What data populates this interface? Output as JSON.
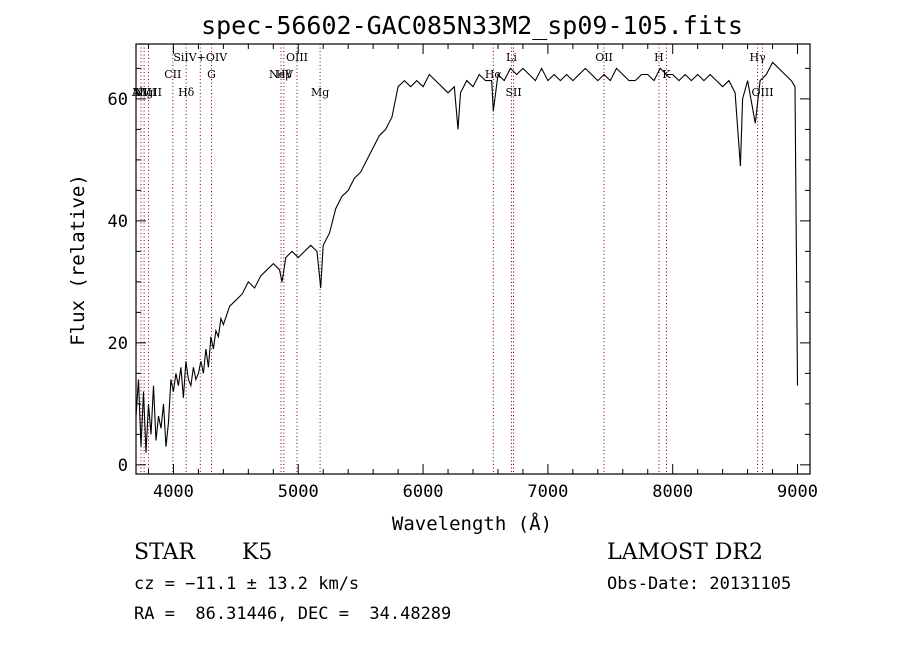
{
  "chart_data": {
    "type": "line",
    "title": "spec-56602-GAC085N33M2_sp09-105.fits",
    "xlabel": "Wavelength (Å)",
    "ylabel": "Flux (relative)",
    "xlim": [
      3700,
      9100
    ],
    "ylim": [
      -1.5,
      69
    ],
    "xticks": [
      4000,
      5000,
      6000,
      7000,
      8000,
      9000
    ],
    "yticks": [
      0,
      20,
      40,
      60
    ],
    "grid": false,
    "line_color": "#000000",
    "marker_color": "#800000",
    "series": [
      {
        "x": [
          3700,
          3720,
          3740,
          3760,
          3780,
          3800,
          3820,
          3840,
          3860,
          3880,
          3900,
          3920,
          3940,
          3960,
          3980,
          4000,
          4020,
          4040,
          4060,
          4080,
          4100,
          4120,
          4140,
          4160,
          4180,
          4200,
          4220,
          4240,
          4260,
          4280,
          4300,
          4320,
          4340,
          4360,
          4380,
          4400,
          4450,
          4500,
          4550,
          4600,
          4650,
          4700,
          4750,
          4800,
          4850,
          4870,
          4900,
          4950,
          5000,
          5050,
          5100,
          5150,
          5180,
          5200,
          5250,
          5300,
          5350,
          5400,
          5450,
          5500,
          5550,
          5600,
          5650,
          5700,
          5750,
          5800,
          5850,
          5900,
          5950,
          6000,
          6050,
          6100,
          6150,
          6200,
          6250,
          6280,
          6300,
          6350,
          6400,
          6450,
          6500,
          6550,
          6563,
          6600,
          6650,
          6700,
          6750,
          6800,
          6850,
          6900,
          6950,
          7000,
          7050,
          7100,
          7150,
          7200,
          7250,
          7300,
          7350,
          7400,
          7450,
          7500,
          7550,
          7600,
          7650,
          7700,
          7750,
          7800,
          7850,
          7900,
          7950,
          8000,
          8050,
          8100,
          8150,
          8200,
          8250,
          8300,
          8350,
          8400,
          8450,
          8500,
          8542,
          8560,
          8600,
          8662,
          8700,
          8750,
          8800,
          8850,
          8900,
          8950,
          8980,
          9000
        ],
        "y": [
          8,
          14,
          3,
          12,
          2,
          10,
          5,
          13,
          4,
          8,
          6,
          10,
          3,
          7,
          14,
          12,
          15,
          13,
          16,
          11,
          17,
          14,
          13,
          16,
          14,
          15,
          17,
          15,
          19,
          16,
          21,
          19,
          22,
          21,
          24,
          23,
          26,
          27,
          28,
          30,
          29,
          31,
          32,
          33,
          32,
          30,
          34,
          35,
          34,
          35,
          36,
          35,
          29,
          36,
          38,
          42,
          44,
          45,
          47,
          48,
          50,
          52,
          54,
          55,
          57,
          62,
          63,
          62,
          63,
          62,
          64,
          63,
          62,
          61,
          62,
          55,
          61,
          63,
          62,
          64,
          63,
          63,
          58,
          64,
          63,
          65,
          64,
          65,
          64,
          63,
          65,
          63,
          64,
          63,
          64,
          63,
          64,
          65,
          64,
          63,
          64,
          63,
          65,
          64,
          63,
          63,
          64,
          64,
          63,
          65,
          64,
          64,
          63,
          64,
          63,
          64,
          63,
          64,
          63,
          62,
          63,
          61,
          49,
          60,
          63,
          56,
          63,
          64,
          66,
          65,
          64,
          63,
          62,
          13
        ]
      }
    ],
    "lines": [
      {
        "label": "NV",
        "x": 3740,
        "pos": "low"
      },
      {
        "label": "AlIII",
        "x": 3765,
        "pos": "low"
      },
      {
        "label": "MgII",
        "x": 3800,
        "pos": "low"
      },
      {
        "label": "CII",
        "x": 3995,
        "pos": "mid"
      },
      {
        "label": "Hδ",
        "x": 4102,
        "pos": "low"
      },
      {
        "label": "SiIV+OIV",
        "x": 4215,
        "pos": "high"
      },
      {
        "label": "G",
        "x": 4305,
        "pos": "mid"
      },
      {
        "label": "NeV",
        "x": 4862,
        "pos": "mid"
      },
      {
        "label": "Hβ",
        "x": 4885,
        "pos": "mid"
      },
      {
        "label": "OIII",
        "x": 4990,
        "pos": "high"
      },
      {
        "label": "Mg",
        "x": 5175,
        "pos": "low"
      },
      {
        "label": "Hα",
        "x": 6563,
        "pos": "mid"
      },
      {
        "label": "Li",
        "x": 6708,
        "pos": "high"
      },
      {
        "label": "SII",
        "x": 6725,
        "pos": "low"
      },
      {
        "label": "OII",
        "x": 7450,
        "pos": "high"
      },
      {
        "label": "H",
        "x": 7890,
        "pos": "high"
      },
      {
        "label": "K",
        "x": 7950,
        "pos": "mid"
      },
      {
        "label": "Hγ",
        "x": 8680,
        "pos": "high"
      },
      {
        "label": "OIII",
        "x": 8720,
        "pos": "low"
      }
    ]
  },
  "footer": {
    "object_class": "STAR",
    "subclass": "K5",
    "survey": "LAMOST DR2",
    "redshift": "cz = −11.1 ± 13.2 km/s",
    "obs_date": "Obs-Date: 20131105",
    "coords": "RA =  86.31446, DEC =  34.48289"
  }
}
